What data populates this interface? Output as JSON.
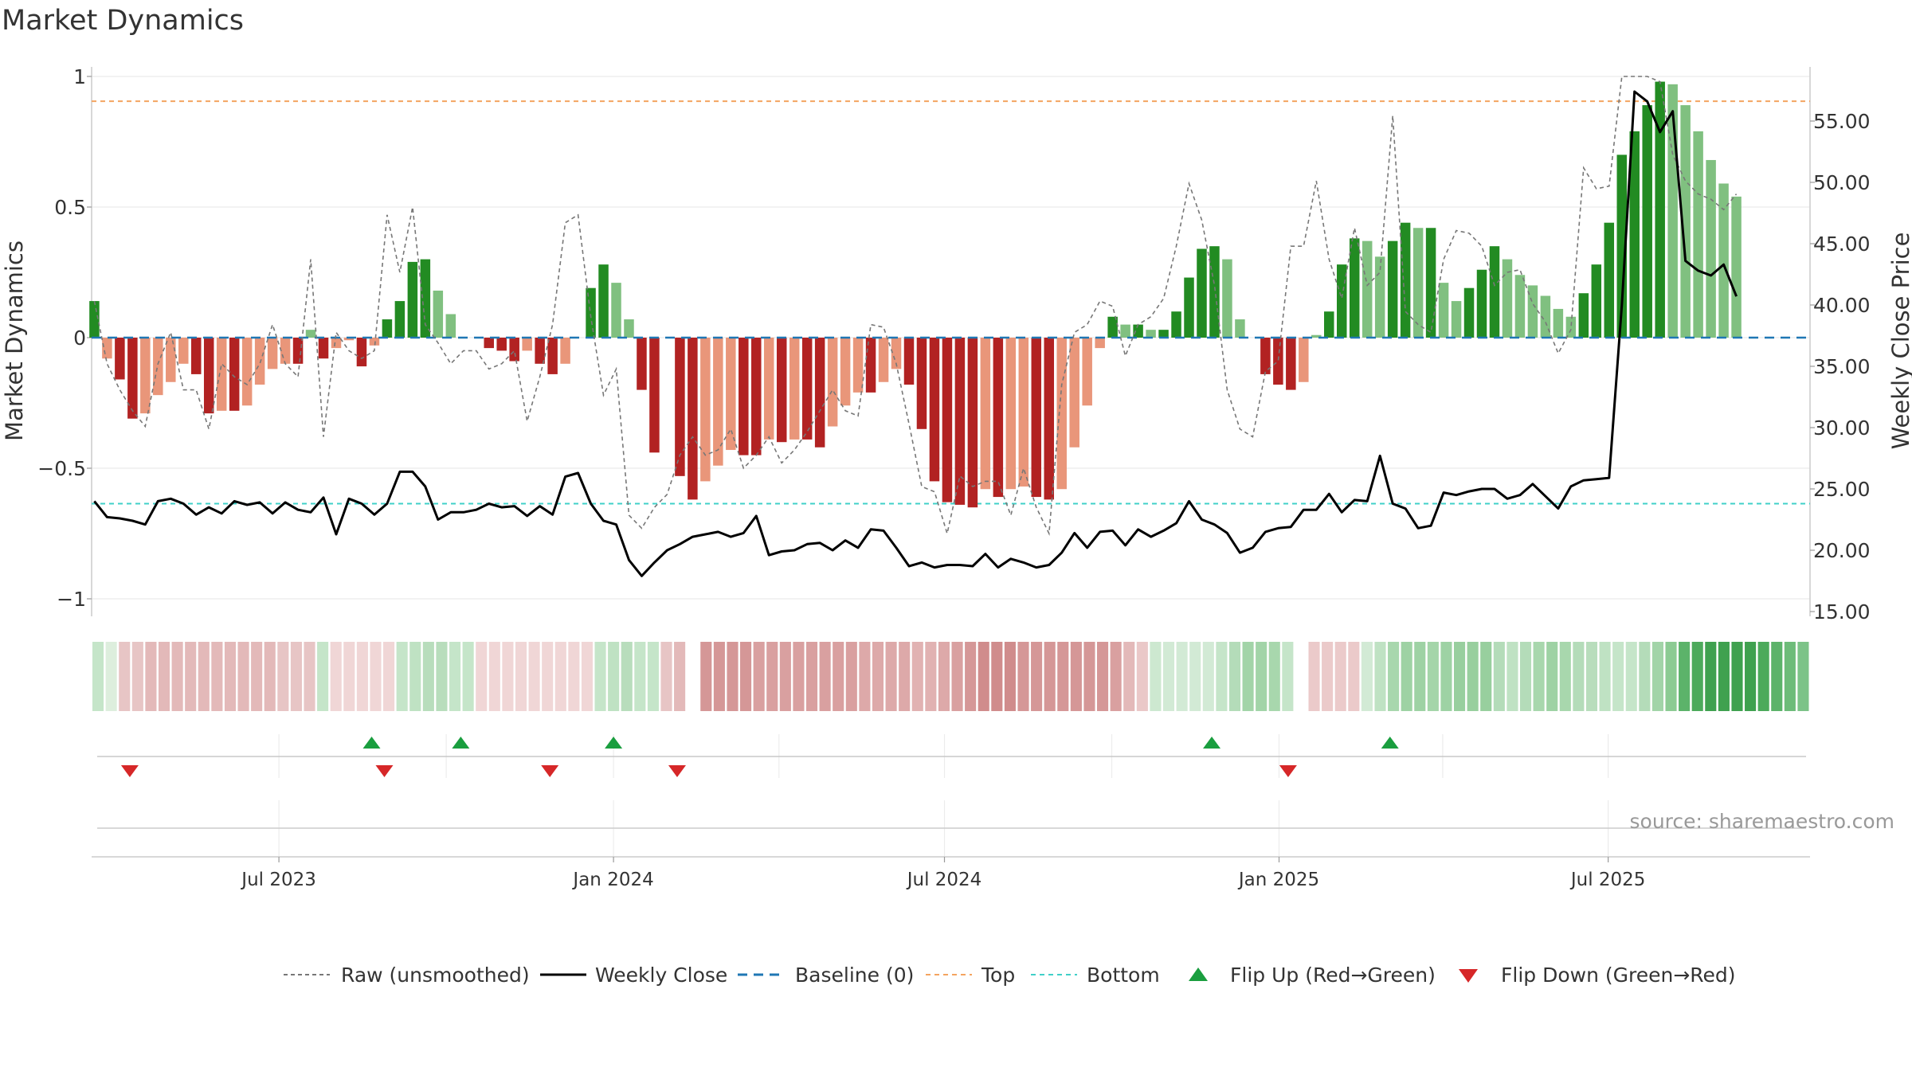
{
  "chart_data": {
    "type": "bar",
    "title": "Market Dynamics",
    "source": "source: sharemaestro.com",
    "ylabel": "Market Dynamics",
    "y2label": "Weekly Close Price",
    "ylim": [
      -1,
      1
    ],
    "y2lim": [
      15,
      58.5
    ],
    "y_ticks": [
      "1",
      "0.5",
      "0",
      "−0.5",
      "−1"
    ],
    "y_tick_values": [
      1,
      0.5,
      0,
      -0.5,
      -1
    ],
    "y2_ticks": [
      "55.00",
      "50.00",
      "45.00",
      "40.00",
      "35.00",
      "30.00",
      "25.00",
      "20.00",
      "15.00"
    ],
    "y2_tick_values": [
      55,
      50,
      45,
      40,
      35,
      30,
      25,
      20,
      15
    ],
    "x_ticks": [
      "Jul 2023",
      "Jan 2024",
      "Jul 2024",
      "Jan 2025",
      "Jul 2025"
    ],
    "x_tick_dates": [
      "2023-07-01",
      "2024-01-01",
      "2024-07-01",
      "2025-01-01",
      "2025-07-01"
    ],
    "x_range": [
      "2023-03-20",
      "2025-10-20"
    ],
    "top_level": 0.905,
    "bottom_level": 23.8,
    "grid": true,
    "legend_position": "bottom-center",
    "legend": [
      "Raw (unsmoothed)",
      "Weekly Close",
      "Baseline (0)",
      "Top",
      "Bottom",
      "Flip Up (Red→Green)",
      "Flip Down (Green→Red)"
    ],
    "colors": {
      "bar_up_strong": "#228b22",
      "bar_up_weak": "#80c080",
      "bar_down_strong": "#b22222",
      "bar_down_weak": "#e9967a",
      "raw_line": "#777777",
      "close_line": "#000000",
      "baseline": "#1f77b4",
      "top": "#f4a460",
      "bottom": "#40d0c8",
      "flip_up": "#1a9e3f",
      "flip_down": "#d62728"
    },
    "series": [
      {
        "name": "Market Dynamics",
        "values": [
          0.14,
          -0.08,
          -0.16,
          -0.31,
          -0.29,
          -0.22,
          -0.17,
          -0.1,
          -0.14,
          -0.29,
          -0.28,
          -0.28,
          -0.26,
          -0.18,
          -0.12,
          -0.1,
          -0.1,
          0.03,
          -0.08,
          -0.04,
          -0.01,
          -0.11,
          -0.03,
          0.07,
          0.14,
          0.29,
          0.3,
          0.18,
          0.09,
          0.0,
          0.0,
          -0.04,
          -0.05,
          -0.09,
          -0.05,
          -0.1,
          -0.14,
          -0.1,
          0.0,
          0.19,
          0.28,
          0.21,
          0.07,
          -0.2,
          -0.44,
          0.0,
          -0.53,
          -0.62,
          -0.55,
          -0.49,
          -0.43,
          -0.45,
          -0.45,
          -0.39,
          -0.4,
          -0.39,
          -0.39,
          -0.42,
          -0.34,
          -0.26,
          -0.21,
          -0.21,
          -0.17,
          -0.12,
          -0.18,
          -0.35,
          -0.55,
          -0.63,
          -0.64,
          -0.65,
          -0.58,
          -0.61,
          -0.58,
          -0.57,
          -0.61,
          -0.62,
          -0.58,
          -0.42,
          -0.26,
          -0.04,
          0.08,
          0.05,
          0.05,
          0.03,
          0.03,
          0.1,
          0.23,
          0.34,
          0.35,
          0.3,
          0.07,
          0.0,
          -0.14,
          -0.18,
          -0.2,
          -0.17,
          0.01,
          0.1,
          0.28,
          0.38,
          0.37,
          0.31,
          0.37,
          0.44,
          0.42,
          0.42,
          0.21,
          0.14,
          0.19,
          0.26,
          0.35,
          0.3,
          0.24,
          0.2,
          0.16,
          0.11,
          0.08,
          0.17,
          0.28,
          0.44,
          0.7,
          0.79,
          0.89,
          0.98,
          0.97,
          0.89,
          0.79,
          0.68,
          0.59,
          0.54
        ]
      },
      {
        "name": "Raw (unsmoothed)",
        "values": [
          0.14,
          -0.1,
          -0.2,
          -0.28,
          -0.34,
          -0.1,
          0.02,
          -0.2,
          -0.2,
          -0.35,
          -0.1,
          -0.15,
          -0.18,
          -0.1,
          0.05,
          -0.1,
          -0.15,
          0.3,
          -0.38,
          0.02,
          -0.05,
          -0.08,
          -0.05,
          0.47,
          0.25,
          0.5,
          0.05,
          -0.02,
          -0.1,
          -0.05,
          -0.05,
          -0.12,
          -0.1,
          -0.05,
          -0.32,
          -0.15,
          0.05,
          0.44,
          0.47,
          0.08,
          -0.22,
          -0.12,
          -0.68,
          -0.73,
          -0.65,
          -0.6,
          -0.45,
          -0.38,
          -0.45,
          -0.43,
          -0.35,
          -0.5,
          -0.45,
          -0.38,
          -0.48,
          -0.43,
          -0.36,
          -0.28,
          -0.2,
          -0.28,
          -0.3,
          0.05,
          0.04,
          -0.1,
          -0.33,
          -0.57,
          -0.59,
          -0.75,
          -0.53,
          -0.57,
          -0.55,
          -0.55,
          -0.68,
          -0.5,
          -0.65,
          -0.75,
          -0.18,
          0.02,
          0.05,
          0.14,
          0.12,
          -0.07,
          0.05,
          0.08,
          0.15,
          0.35,
          0.59,
          0.45,
          0.2,
          -0.2,
          -0.35,
          -0.38,
          -0.13,
          -0.09,
          0.35,
          0.35,
          0.6,
          0.3,
          0.15,
          0.42,
          0.2,
          0.25,
          0.85,
          0.1,
          0.05,
          0.02,
          0.3,
          0.41,
          0.4,
          0.35,
          0.2,
          0.25,
          0.26,
          0.13,
          0.06,
          -0.06,
          0.03,
          0.65,
          0.57,
          0.58,
          1.0,
          1.0,
          1.0,
          0.98,
          0.7,
          0.6,
          0.55,
          0.53,
          0.49,
          0.55
        ]
      },
      {
        "name": "Weekly Close",
        "values": [
          24.0,
          22.7,
          22.6,
          22.4,
          22.1,
          24.0,
          24.2,
          23.8,
          22.9,
          23.5,
          23.0,
          24.0,
          23.7,
          23.9,
          23.0,
          23.9,
          23.3,
          23.1,
          24.3,
          21.3,
          24.2,
          23.8,
          22.9,
          23.8,
          26.4,
          26.4,
          25.2,
          22.5,
          23.1,
          23.1,
          23.3,
          23.8,
          23.5,
          23.6,
          22.8,
          23.6,
          22.9,
          26.0,
          26.3,
          23.8,
          22.4,
          22.1,
          19.2,
          17.9,
          19.0,
          20.0,
          20.5,
          21.1,
          21.3,
          21.5,
          21.1,
          21.4,
          22.8,
          19.6,
          19.9,
          20.0,
          20.5,
          20.6,
          20.0,
          20.8,
          20.2,
          21.7,
          21.6,
          20.2,
          18.7,
          19.0,
          18.6,
          18.8,
          18.8,
          18.7,
          19.7,
          18.6,
          19.3,
          19.0,
          18.6,
          18.8,
          19.8,
          21.4,
          20.2,
          21.5,
          21.6,
          20.4,
          21.7,
          21.1,
          21.6,
          22.2,
          24.0,
          22.5,
          22.1,
          21.4,
          19.8,
          20.2,
          21.5,
          21.8,
          21.9,
          23.3,
          23.3,
          24.6,
          23.1,
          24.1,
          24.0,
          27.7,
          23.8,
          23.4,
          21.8,
          22.0,
          24.7,
          24.5,
          24.8,
          25.0,
          25.0,
          24.2,
          24.5,
          25.4,
          24.4,
          23.4,
          25.2,
          25.7,
          25.8,
          25.9,
          40.0,
          57.4,
          56.6,
          54.1,
          55.8,
          43.6,
          42.8,
          42.4,
          43.3,
          40.7
        ]
      }
    ],
    "color_strip": {
      "name": "Regime strip",
      "colors": [
        "#c5e5c9",
        "#ddeedd",
        "#e7c5c5",
        "#e7c5c5",
        "#e3b9b9",
        "#e3b9b9",
        "#e3b9b9",
        "#e3b9b9",
        "#e3b9b9",
        "#e3b9b9",
        "#e3b9b9",
        "#e3b9b9",
        "#e3b9b9",
        "#e3b9b9",
        "#e7c5c5",
        "#e7c5c5",
        "#e7c5c5",
        "#c5e5c9",
        "#f0d6d6",
        "#f0d6d6",
        "#f0d6d6",
        "#f0d6d6",
        "#f0d6d6",
        "#c5e5c9",
        "#bfe2c3",
        "#b8ddbc",
        "#b8ddbc",
        "#c5e5c9",
        "#c5e5c9",
        "#f0d6d6",
        "#f0d6d6",
        "#f0d6d6",
        "#f0d6d6",
        "#f0d6d6",
        "#f0d6d6",
        "#f0d6d6",
        "#f0d6d6",
        "#f0d6d6",
        "#c5e5c9",
        "#bfe2c3",
        "#b8ddbc",
        "#c5e5c9",
        "#c5e5c9",
        "#e7c5c5",
        "#e3b9b9",
        "#ffffff",
        "#d59797",
        "#d59797",
        "#d59797",
        "#d59797",
        "#d9a0a0",
        "#d9a0a0",
        "#d9a0a0",
        "#d9a0a0",
        "#d9a0a0",
        "#d9a0a0",
        "#d9a0a0",
        "#d9a0a0",
        "#dda9a9",
        "#dda9a9",
        "#dda9a9",
        "#dda9a9",
        "#e1b2b2",
        "#e1b2b2",
        "#dda9a9",
        "#d9a0a0",
        "#d59797",
        "#d08c8c",
        "#d08c8c",
        "#d08c8c",
        "#d59797",
        "#d59797",
        "#d59797",
        "#d59797",
        "#d59797",
        "#d59797",
        "#d59797",
        "#d9a0a0",
        "#e3b9b9",
        "#eac8c8",
        "#cde8d0",
        "#d2ead5",
        "#d2ead5",
        "#d2ead5",
        "#d2ead5",
        "#c5e5c9",
        "#b4dcb9",
        "#a2d4a8",
        "#a2d4a8",
        "#a8d7ad",
        "#c5e5c9",
        "#ffffff",
        "#ebcaca",
        "#ebcaca",
        "#ebcaca",
        "#ebcaca",
        "#d2ead5",
        "#bfe2c3",
        "#a8d7ad",
        "#9ed2a4",
        "#9ed2a4",
        "#a4d5a9",
        "#9ed2a4",
        "#98cf9e",
        "#98cf9e",
        "#98cf9e",
        "#b4dcb9",
        "#bfe2c3",
        "#b4dcb9",
        "#a8d7ad",
        "#9ed2a4",
        "#a8d7ad",
        "#b4dcb9",
        "#b8ddbc",
        "#bfe2c3",
        "#c5e5c9",
        "#c5e5c9",
        "#b4dcb9",
        "#a2d4a8",
        "#8ccb93",
        "#5cb36a",
        "#4caa5b",
        "#3fa14f",
        "#3fa14f",
        "#3fa14f",
        "#3fa14f",
        "#4caa5b",
        "#5cb36a",
        "#6dbc79",
        "#7cc388"
      ]
    },
    "flip_up_dates": [
      "2023-08-21",
      "2023-10-09",
      "2024-01-01",
      "2024-11-25",
      "2025-03-03"
    ],
    "flip_down_dates": [
      "2023-04-10",
      "2023-08-28",
      "2023-11-27",
      "2024-02-05",
      "2025-01-06"
    ]
  }
}
